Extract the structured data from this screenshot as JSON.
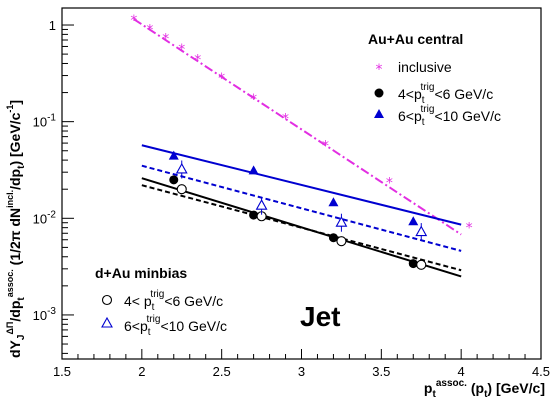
{
  "chart_data": {
    "type": "scatter",
    "xlabel": "p_t^{assoc.} (p_t) [GeV/c]",
    "ylabel": "dY_J^{ΔΠ}/dp_t^{assoc.} (1/2π dN^{incl.}/dp_t) [GeV/c^{-1}]",
    "xlim": [
      1.5,
      4.5
    ],
    "ylim": [
      0.00035,
      1.5
    ],
    "yscale": "log",
    "x_ticks": [
      "1.5",
      "2",
      "2.5",
      "3",
      "3.5",
      "4",
      "4.5"
    ],
    "y_ticks": [
      "1",
      "10^{-1}",
      "10^{-2}",
      "10^{-3}"
    ],
    "annotation": "Jet",
    "legend_top": {
      "title": "Au+Au central",
      "entries": [
        "inclusive",
        "4<p_t^{trig}<6 GeV/c",
        "6<p_t^{trig}<10 GeV/c"
      ]
    },
    "legend_bottom": {
      "title": "d+Au minbias",
      "entries": [
        "4< p_t^{trig}<6 GeV/c",
        "6<p_t^{trig}<10 GeV/c"
      ]
    },
    "series": [
      {
        "name": "inclusive",
        "marker": "star",
        "color": "#e22ee2",
        "x": [
          1.95,
          2.05,
          2.15,
          2.25,
          2.35,
          2.5,
          2.7,
          2.9,
          3.15,
          3.55,
          4.05
        ],
        "y": [
          1.15,
          0.92,
          0.74,
          0.58,
          0.45,
          0.29,
          0.175,
          0.11,
          0.058,
          0.024,
          0.0082
        ],
        "fit": {
          "x": [
            1.95,
            4.0
          ],
          "y": [
            1.15,
            0.0068
          ],
          "dash": "9,3,2,3"
        }
      },
      {
        "name": "4<p_t^{trig}<6 GeV/c",
        "marker": "filled-circle",
        "color": "#000000",
        "x": [
          2.2,
          2.7,
          3.2,
          3.7
        ],
        "y": [
          0.025,
          0.0108,
          0.0063,
          0.0034
        ],
        "fit": {
          "x": [
            2.0,
            4.0
          ],
          "y": [
            0.026,
            0.0025
          ],
          "dash": ""
        }
      },
      {
        "name": "6<p_t^{trig}<10 GeV/c",
        "marker": "filled-triangle",
        "color": "#0000d0",
        "x": [
          2.2,
          2.7,
          3.2,
          3.7
        ],
        "y": [
          0.044,
          0.031,
          0.0145,
          0.0092
        ],
        "fit": {
          "x": [
            2.0,
            4.0
          ],
          "y": [
            0.057,
            0.0086
          ],
          "dash": ""
        }
      },
      {
        "name": "4< p_t^{trig}<6 GeV/c",
        "marker": "open-circle",
        "color": "#000000",
        "x": [
          2.25,
          2.75,
          3.25,
          3.75
        ],
        "y": [
          0.02,
          0.0105,
          0.0058,
          0.0033
        ],
        "fit": {
          "x": [
            2.0,
            4.0
          ],
          "y": [
            0.022,
            0.0029
          ],
          "dash": "5,3"
        }
      },
      {
        "name": "6<p_t^{trig}<10 GeV/c",
        "marker": "open-triangle",
        "color": "#0000d0",
        "x": [
          2.25,
          2.75,
          3.25,
          3.75
        ],
        "y": [
          0.032,
          0.0135,
          0.009,
          0.0072
        ],
        "fit": {
          "x": [
            2.0,
            4.0
          ],
          "y": [
            0.035,
            0.0046
          ],
          "dash": "5,3"
        }
      }
    ]
  }
}
